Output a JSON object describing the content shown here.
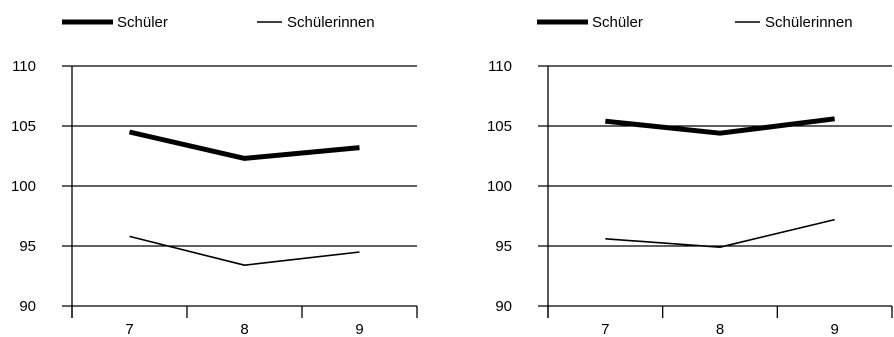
{
  "chart_data": [
    {
      "type": "line",
      "categories": [
        "7",
        "8",
        "9"
      ],
      "series": [
        {
          "name": "Schüler",
          "values": [
            104.5,
            102.3,
            103.2
          ],
          "color": "#000000",
          "weight": "thick"
        },
        {
          "name": "Schülerinnen",
          "values": [
            95.8,
            93.4,
            94.5
          ],
          "color": "#000000",
          "weight": "thin"
        }
      ],
      "y_ticks": [
        "110",
        "105",
        "100",
        "95",
        "90"
      ],
      "ylim": [
        90,
        110
      ],
      "grid": true,
      "legend": "top"
    },
    {
      "type": "line",
      "categories": [
        "7",
        "8",
        "9"
      ],
      "series": [
        {
          "name": "Schüler",
          "values": [
            105.4,
            104.4,
            105.6
          ],
          "color": "#000000",
          "weight": "thick"
        },
        {
          "name": "Schülerinnen",
          "values": [
            95.6,
            94.9,
            97.2
          ],
          "color": "#000000",
          "weight": "thin"
        }
      ],
      "y_ticks": [
        "110",
        "105",
        "100",
        "95",
        "90"
      ],
      "ylim": [
        90,
        110
      ],
      "grid": true,
      "legend": "top"
    }
  ]
}
